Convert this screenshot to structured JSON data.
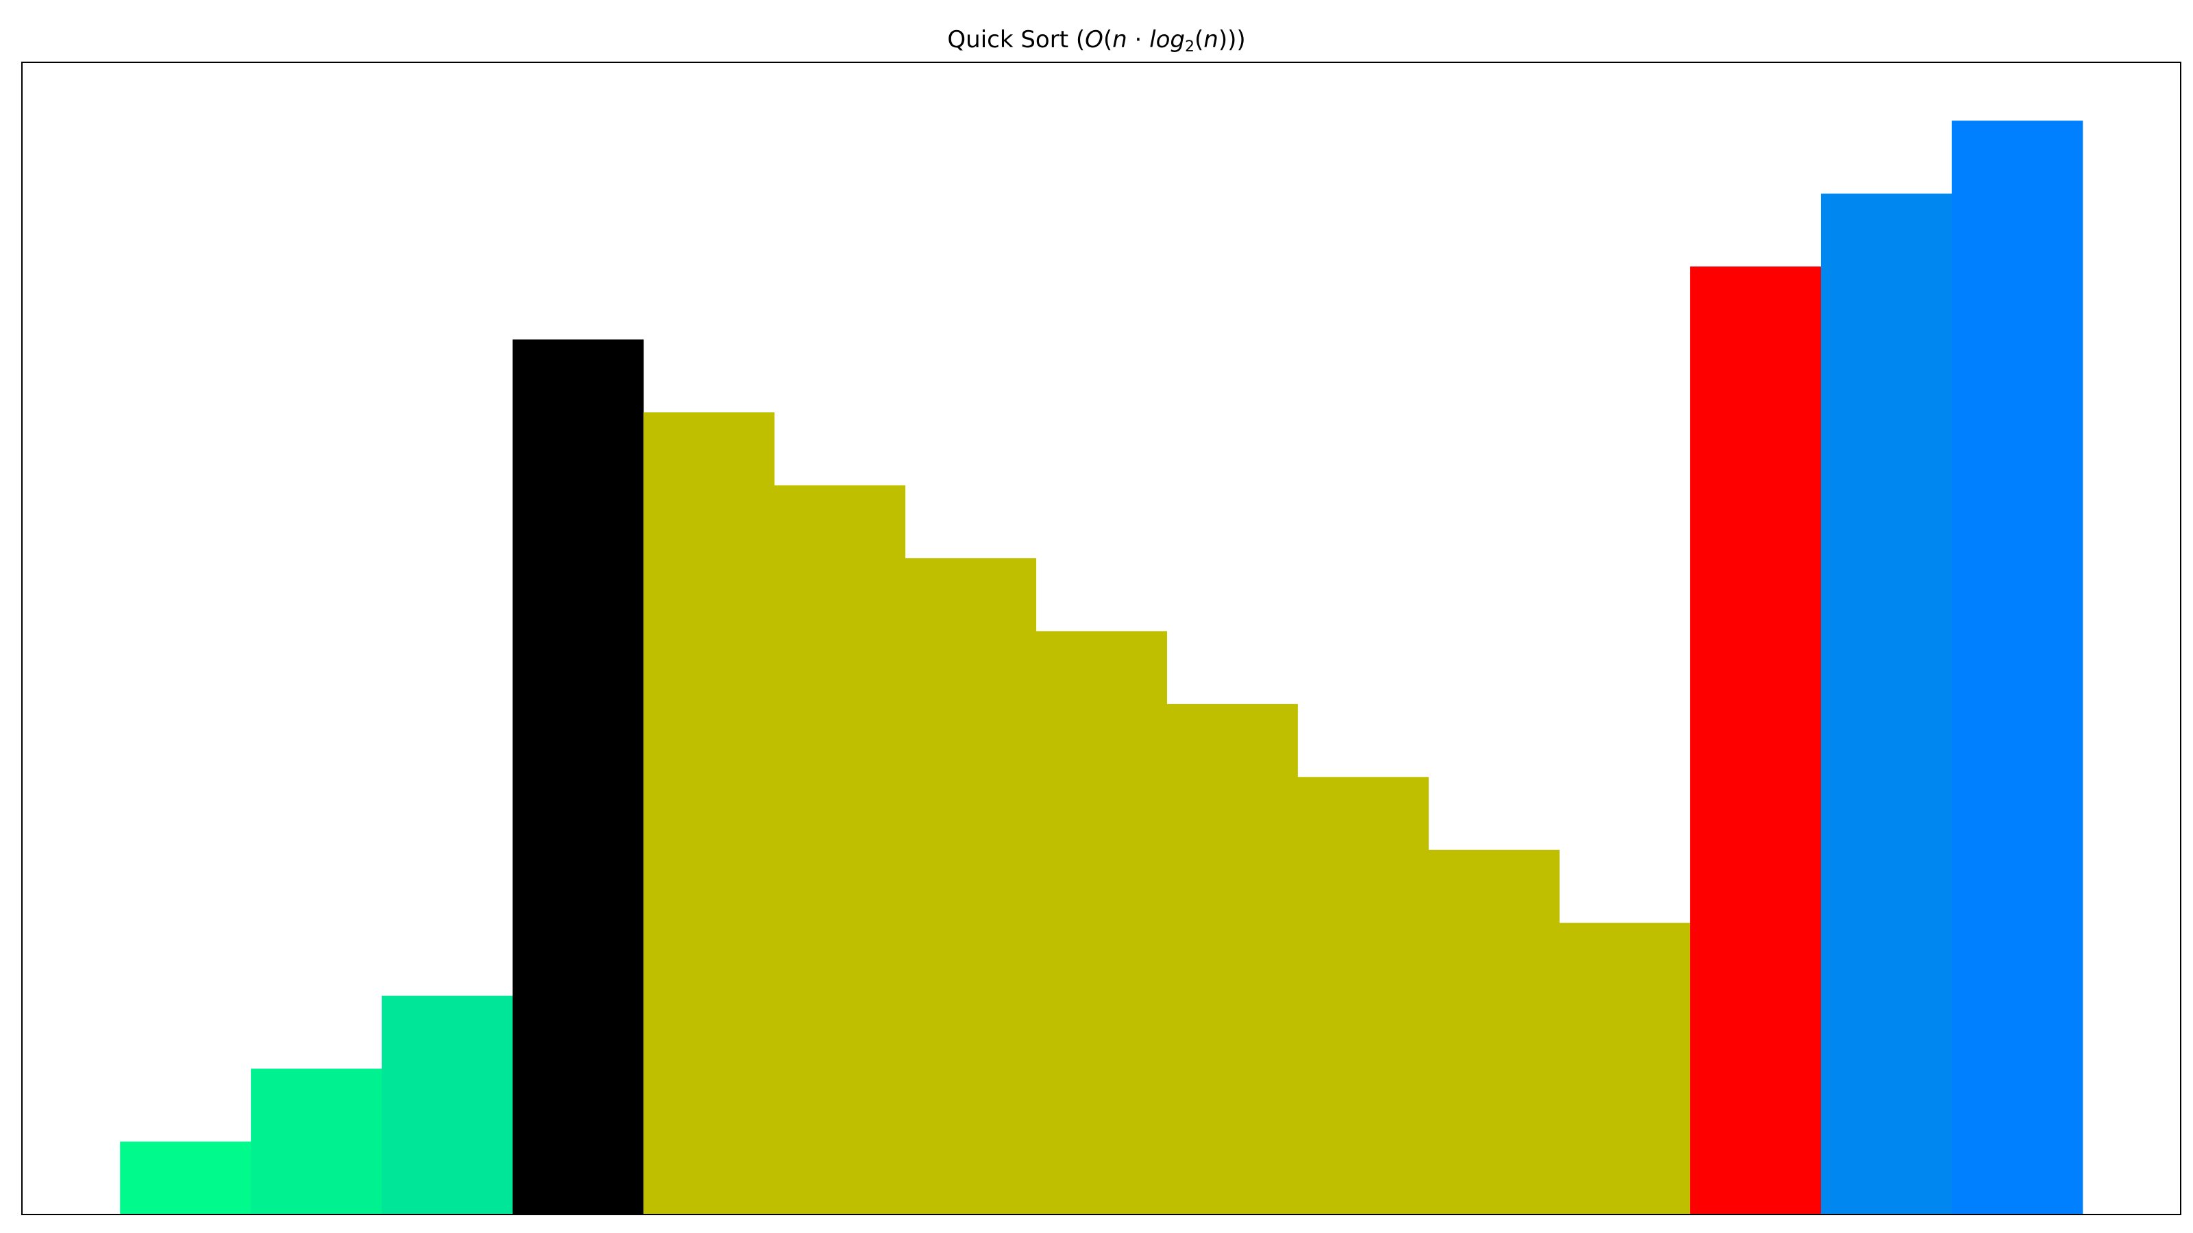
{
  "chart_data": {
    "type": "bar",
    "title": "Quick Sort",
    "title_math": {
      "open": "(",
      "O": "O",
      "paren_open": "(",
      "n": "n",
      "dot": " · ",
      "log": "log",
      "base": "2",
      "arg_open": "(",
      "arg": "n",
      "close": ")))"
    },
    "xlabel": "",
    "ylabel": "",
    "grid": false,
    "axes_ticks_visible": false,
    "ylim": [
      0,
      15.8
    ],
    "bars": [
      {
        "value": 1,
        "color": "#00fa8b"
      },
      {
        "value": 2,
        "color": "#00f290"
      },
      {
        "value": 3,
        "color": "#00e698"
      },
      {
        "value": 12,
        "color": "#000000"
      },
      {
        "value": 11,
        "color": "#bfbf00"
      },
      {
        "value": 10,
        "color": "#bfbf00"
      },
      {
        "value": 9,
        "color": "#bfbf00"
      },
      {
        "value": 8,
        "color": "#bfbf00"
      },
      {
        "value": 7,
        "color": "#bfbf00"
      },
      {
        "value": 6,
        "color": "#bfbf00"
      },
      {
        "value": 5,
        "color": "#bfbf00"
      },
      {
        "value": 4,
        "color": "#bfbf00"
      },
      {
        "value": 13,
        "color": "#ff0000"
      },
      {
        "value": 14,
        "color": "#0088f0"
      },
      {
        "value": 15,
        "color": "#0080ff"
      }
    ]
  }
}
